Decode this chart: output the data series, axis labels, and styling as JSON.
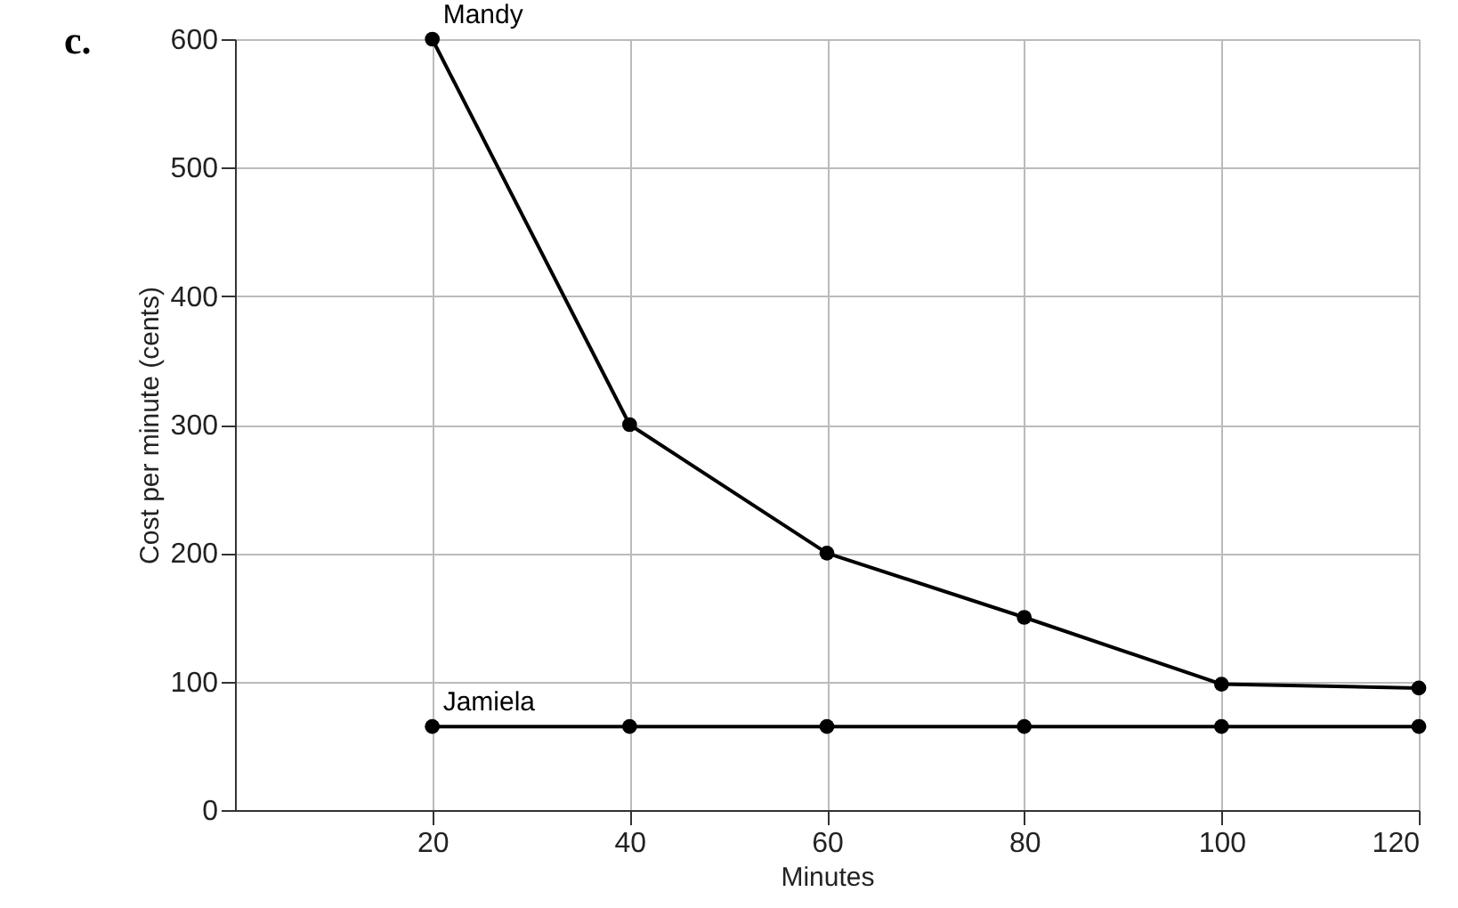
{
  "chart_data": {
    "type": "line",
    "title": "c.",
    "xlabel": "Minutes",
    "ylabel": "Cost per minute (cents)",
    "x": [
      20,
      40,
      60,
      80,
      100,
      120
    ],
    "series": [
      {
        "name": "Mandy",
        "color": "#000000",
        "values": [
          600,
          300,
          200,
          150,
          98,
          95
        ]
      },
      {
        "name": "Jamiela",
        "color": "#000000",
        "values": [
          65,
          65,
          65,
          65,
          65,
          65
        ]
      }
    ],
    "xlim": [
      0,
      120
    ],
    "xticks": [
      20,
      40,
      60,
      80,
      100,
      120
    ],
    "ylim": [
      0,
      600
    ],
    "yticks": [
      0,
      100,
      200,
      300,
      400,
      500,
      600
    ],
    "grid": true,
    "legend": false,
    "marker": "circle",
    "line_style": "solid"
  }
}
